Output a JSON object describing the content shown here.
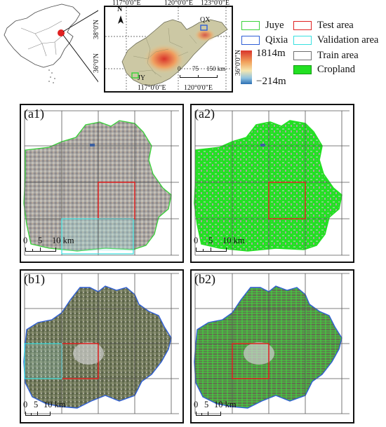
{
  "overview": {
    "lon_top": [
      "117°0'0\"E",
      "120°0'0\"E",
      "123°0'0\"E"
    ],
    "lon_bottom": [
      "117°0'0\"E",
      "120°0'0\"E"
    ],
    "lat_left": [
      "38°0'N",
      "36°0'N"
    ],
    "lat_right": [
      "36°0'0\"N"
    ],
    "place_labels": {
      "qixia": "QX",
      "juye": "JY"
    },
    "north_arrow": "N",
    "scale": {
      "ticks": [
        "0",
        "75",
        "150 km"
      ]
    }
  },
  "elevation": {
    "max": "1814m",
    "min": "−214m"
  },
  "legend": {
    "juye": "Juye",
    "qixia": "Qixia",
    "test": "Test area",
    "validation": "Validation area",
    "train": "Train area",
    "cropland": "Cropland"
  },
  "colors": {
    "juye": "#39d339",
    "qixia": "#2f5fd6",
    "test": "#e02020",
    "validation": "#38e0e0",
    "train": "#707070",
    "cropland": "#22e022",
    "china_highlight": "#e02020"
  },
  "panels": {
    "a1": {
      "label": "(a1)",
      "scale": [
        "0",
        "5",
        "10 km"
      ]
    },
    "a2": {
      "label": "(a2)",
      "scale": [
        "0",
        "5",
        "10 km"
      ]
    },
    "b1": {
      "label": "(b1)",
      "scale": [
        "0",
        "5",
        "10 km"
      ]
    },
    "b2": {
      "label": "(b2)",
      "scale": [
        "0",
        "5",
        "10 km"
      ]
    }
  }
}
